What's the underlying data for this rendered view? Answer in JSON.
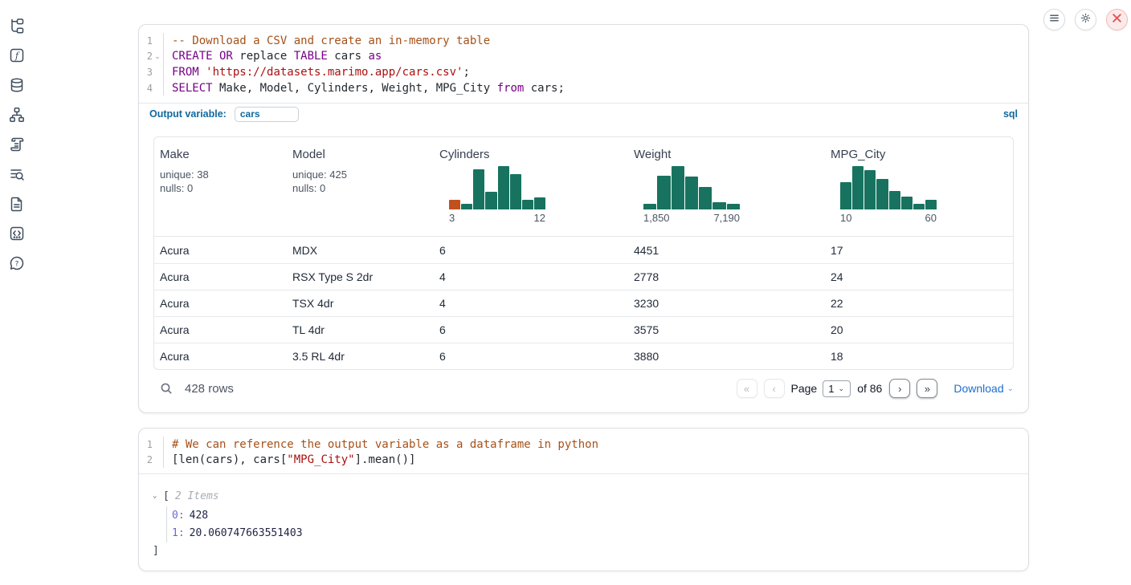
{
  "colors": {
    "accent_blue": "#11689e",
    "download_blue": "#1b6fd0",
    "hist_green": "#17735f",
    "hist_orange": "#c0511f",
    "close_red": "#e25555",
    "keyword": "#770088",
    "string": "#aa1111",
    "comment": "#a65119"
  },
  "sidebar": {
    "icons": [
      "file-tree-icon",
      "function-icon",
      "database-icon",
      "dependency-graph-icon",
      "scratchpad-icon",
      "logs-icon",
      "documentation-icon",
      "snippets-icon",
      "help-icon"
    ]
  },
  "window_controls": {
    "menu": "hamburger-icon",
    "settings": "gear-icon",
    "shutdown": "close-icon"
  },
  "sql_cell": {
    "language_badge": "sql",
    "output_variable_label": "Output variable:",
    "output_variable_value": "cars",
    "lines": [
      {
        "num": "1",
        "fold": false,
        "tokens": [
          {
            "c": "com",
            "t": "-- Download a CSV and create an in-memory table"
          }
        ]
      },
      {
        "num": "2",
        "fold": true,
        "tokens": [
          {
            "c": "kw",
            "t": "CREATE OR"
          },
          {
            "c": "pl",
            "t": " replace "
          },
          {
            "c": "kw",
            "t": "TABLE"
          },
          {
            "c": "pl",
            "t": " cars "
          },
          {
            "c": "kw",
            "t": "as"
          }
        ]
      },
      {
        "num": "3",
        "fold": false,
        "tokens": [
          {
            "c": "kw",
            "t": "FROM"
          },
          {
            "c": "pl",
            "t": " "
          },
          {
            "c": "str",
            "t": "'https://datasets.marimo.app/cars.csv'"
          },
          {
            "c": "pl",
            "t": ";"
          }
        ]
      },
      {
        "num": "4",
        "fold": false,
        "tokens": [
          {
            "c": "kw",
            "t": "SELECT"
          },
          {
            "c": "pl",
            "t": " Make, Model, Cylinders, Weight, MPG_City "
          },
          {
            "c": "kw",
            "t": "from"
          },
          {
            "c": "pl",
            "t": " cars;"
          }
        ]
      }
    ]
  },
  "table": {
    "columns": [
      {
        "name": "Make",
        "type": "stats",
        "stats": [
          "unique: 38",
          "nulls: 0"
        ]
      },
      {
        "name": "Model",
        "type": "stats",
        "stats": [
          "unique: 425",
          "nulls: 0"
        ]
      },
      {
        "name": "Cylinders",
        "type": "histogram",
        "min_label": "3",
        "max_label": "12",
        "bars": [
          {
            "v": 0.22,
            "highlight": true
          },
          {
            "v": 0.13
          },
          {
            "v": 0.92
          },
          {
            "v": 0.4
          },
          {
            "v": 1.0
          },
          {
            "v": 0.82
          },
          {
            "v": 0.22
          },
          {
            "v": 0.27
          }
        ]
      },
      {
        "name": "Weight",
        "type": "histogram",
        "min_label": "1,850",
        "max_label": "7,190",
        "bars": [
          {
            "v": 0.13
          },
          {
            "v": 0.78
          },
          {
            "v": 1.0
          },
          {
            "v": 0.76
          },
          {
            "v": 0.52
          },
          {
            "v": 0.17
          },
          {
            "v": 0.13
          }
        ]
      },
      {
        "name": "MPG_City",
        "type": "histogram",
        "min_label": "10",
        "max_label": "60",
        "bars": [
          {
            "v": 0.63
          },
          {
            "v": 1.0
          },
          {
            "v": 0.9
          },
          {
            "v": 0.7
          },
          {
            "v": 0.42
          },
          {
            "v": 0.3
          },
          {
            "v": 0.13
          },
          {
            "v": 0.23
          }
        ]
      }
    ],
    "rows": [
      [
        "Acura",
        "MDX",
        "6",
        "4451",
        "17"
      ],
      [
        "Acura",
        "RSX Type S 2dr",
        "4",
        "2778",
        "24"
      ],
      [
        "Acura",
        "TSX 4dr",
        "4",
        "3230",
        "22"
      ],
      [
        "Acura",
        "TL 4dr",
        "6",
        "3575",
        "20"
      ],
      [
        "Acura",
        "3.5 RL 4dr",
        "6",
        "3880",
        "18"
      ]
    ],
    "footer": {
      "row_count": "428 rows",
      "pagination": {
        "first_label": "«",
        "prev_label": "‹",
        "page_label": "Page",
        "page_value": "1",
        "of_label": "of 86",
        "next_label": "›",
        "last_label": "»"
      },
      "download_label": "Download"
    }
  },
  "python_cell": {
    "lines": [
      {
        "num": "1",
        "fold": false,
        "tokens": [
          {
            "c": "com",
            "t": "# We can reference the output variable as a dataframe in python"
          }
        ]
      },
      {
        "num": "2",
        "fold": false,
        "tokens": [
          {
            "c": "pl",
            "t": "[len(cars), cars["
          },
          {
            "c": "str",
            "t": "\"MPG_City\""
          },
          {
            "c": "pl",
            "t": "].mean()]"
          }
        ]
      }
    ]
  },
  "output_tree": {
    "open_bracket": "[",
    "close_bracket": "]",
    "items_label": "2 Items",
    "entries": [
      {
        "key": "0:",
        "value": "428"
      },
      {
        "key": "1:",
        "value": "20.060747663551403"
      }
    ]
  }
}
